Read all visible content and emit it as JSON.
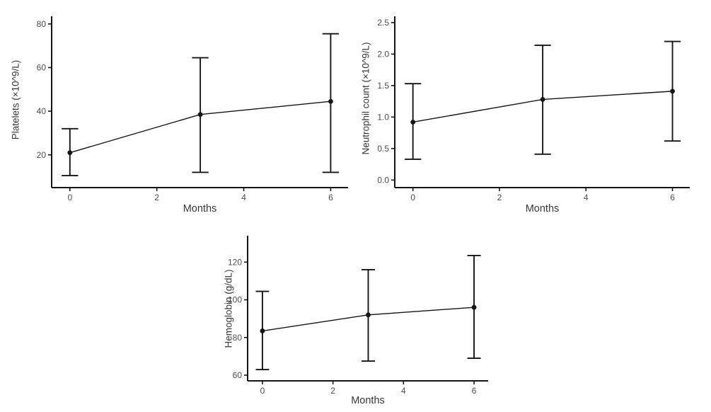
{
  "style": {
    "background": "#ffffff",
    "axis_line_color": "#151515",
    "tick_label_color": "#4d4d4d",
    "axis_title_color": "#383838",
    "data_color": "#151515"
  },
  "chart_data": [
    {
      "type": "line",
      "title": "",
      "name": "platelets",
      "ylabel": "Platelets (×10^9/L)",
      "xlabel": "Months",
      "x": [
        0,
        3,
        6
      ],
      "series": [
        {
          "name": "mean",
          "values": [
            21,
            38.5,
            44.5
          ]
        }
      ],
      "error_bars": {
        "lower": [
          10.5,
          12,
          12
        ],
        "upper": [
          32,
          64.5,
          75.5
        ]
      },
      "xticks": {
        "values": [
          0,
          2,
          4,
          6
        ],
        "labels": [
          "0",
          "2",
          "4",
          "6"
        ]
      },
      "yticks": {
        "values": [
          20,
          40,
          60,
          80
        ],
        "labels": [
          "20",
          "40",
          "60",
          "80"
        ]
      },
      "xlim": [
        -0.42,
        6.4
      ],
      "ylim": [
        5,
        83.5
      ],
      "grid": false,
      "legend_position": "none"
    },
    {
      "type": "line",
      "title": "",
      "name": "neutrophil-count",
      "ylabel": "Neutrophil count (×10^9/L)",
      "xlabel": "Months",
      "x": [
        0,
        3,
        6
      ],
      "series": [
        {
          "name": "mean",
          "values": [
            0.92,
            1.28,
            1.41
          ]
        }
      ],
      "error_bars": {
        "lower": [
          0.33,
          0.41,
          0.62
        ],
        "upper": [
          1.53,
          2.14,
          2.2
        ]
      },
      "xticks": {
        "values": [
          0,
          2,
          4,
          6
        ],
        "labels": [
          "0",
          "2",
          "4",
          "6"
        ]
      },
      "yticks": {
        "values": [
          0,
          0.5,
          1,
          1.5,
          2,
          2.5
        ],
        "labels": [
          "0.0",
          "0.5",
          "1.0",
          "1.5",
          "2.0",
          "2.5"
        ]
      },
      "xlim": [
        -0.42,
        6.4
      ],
      "ylim": [
        -0.12,
        2.6
      ],
      "grid": false,
      "legend_position": "none"
    },
    {
      "type": "line",
      "title": "",
      "name": "hemoglobin",
      "ylabel": "Hemoglobin (g/dL)",
      "xlabel": "Months",
      "x": [
        0,
        3,
        6
      ],
      "series": [
        {
          "name": "mean",
          "values": [
            83.5,
            92,
            96
          ]
        }
      ],
      "error_bars": {
        "lower": [
          63,
          67.5,
          69
        ],
        "upper": [
          104.5,
          116,
          123.5
        ]
      },
      "xticks": {
        "values": [
          0,
          2,
          4,
          6
        ],
        "labels": [
          "0",
          "2",
          "4",
          "6"
        ]
      },
      "yticks": {
        "values": [
          60,
          80,
          100,
          120
        ],
        "labels": [
          "60",
          "80",
          "100",
          "120"
        ]
      },
      "xlim": [
        -0.42,
        6.4
      ],
      "ylim": [
        57,
        134
      ],
      "grid": false,
      "legend_position": "none"
    }
  ]
}
